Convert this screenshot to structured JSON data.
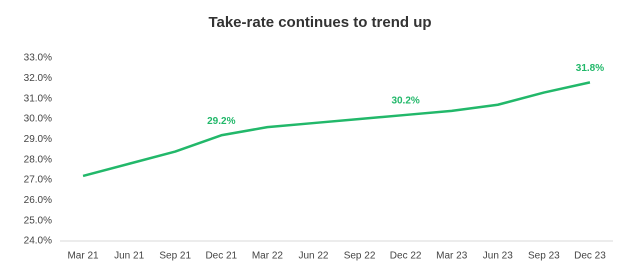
{
  "chart_data": {
    "type": "line",
    "title": "Take-rate continues to trend up",
    "categories": [
      "Mar 21",
      "Jun 21",
      "Sep 21",
      "Dec 21",
      "Mar 22",
      "Jun 22",
      "Sep 22",
      "Dec 22",
      "Mar 23",
      "Jun 23",
      "Sep 23",
      "Dec 23"
    ],
    "values": [
      27.2,
      27.8,
      28.4,
      29.2,
      29.6,
      29.8,
      30.0,
      30.2,
      30.4,
      30.7,
      31.3,
      31.8
    ],
    "value_labels": [
      null,
      null,
      null,
      "29.2%",
      null,
      null,
      null,
      "30.2%",
      null,
      null,
      null,
      "31.8%"
    ],
    "color": "#22b86a",
    "ylim": [
      24,
      33
    ],
    "yticks": [
      {
        "value": 24,
        "label": "24.0%"
      },
      {
        "value": 25,
        "label": "25.0%"
      },
      {
        "value": 26,
        "label": "26.0%"
      },
      {
        "value": 27,
        "label": "27.0%"
      },
      {
        "value": 28,
        "label": "28.0%"
      },
      {
        "value": 29,
        "label": "29.0%"
      },
      {
        "value": 30,
        "label": "30.0%"
      },
      {
        "value": 31,
        "label": "31.0%"
      },
      {
        "value": 32,
        "label": "32.0%"
      },
      {
        "value": 33,
        "label": "33.0%"
      }
    ],
    "grid": false
  }
}
